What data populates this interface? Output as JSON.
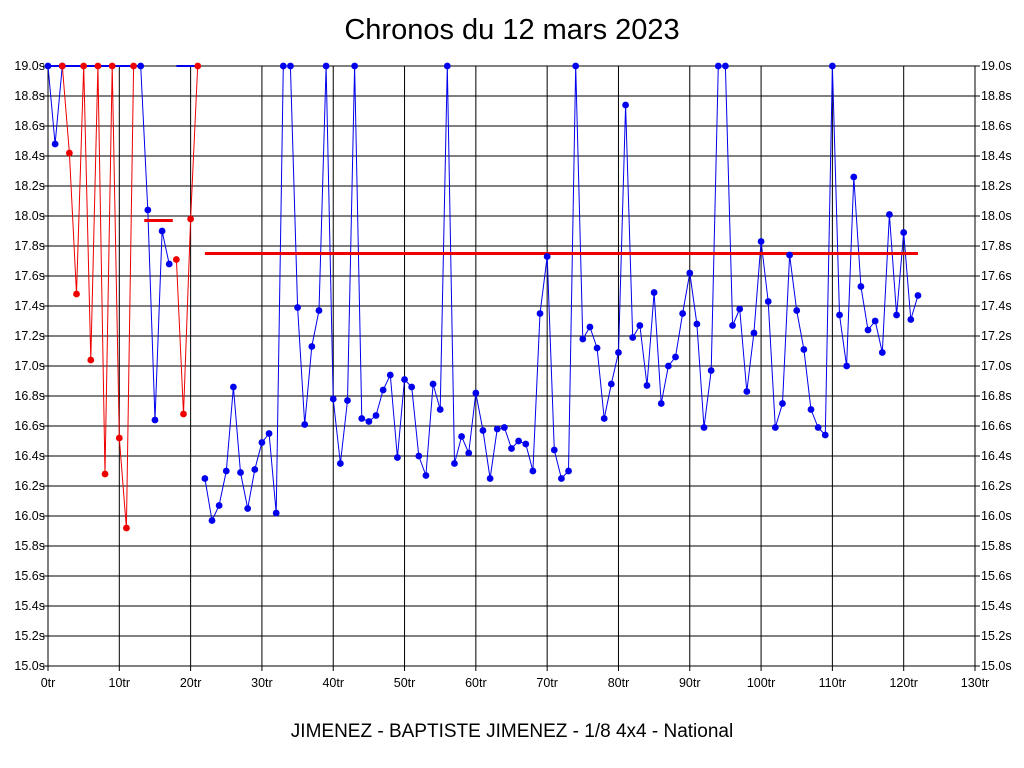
{
  "chart_data": {
    "type": "line",
    "title": "Chronos du 12 mars 2023",
    "footer": "JIMENEZ - BAPTISTE JIMENEZ - 1/8 4x4 - National",
    "xlabel": "",
    "ylabel": "",
    "xlim": [
      0,
      130
    ],
    "ylim": [
      15.0,
      19.0
    ],
    "grid": true,
    "x_ticks": [
      0,
      10,
      20,
      30,
      40,
      50,
      60,
      70,
      80,
      90,
      100,
      110,
      120,
      130
    ],
    "x_tick_labels": [
      "0tr",
      "10tr",
      "20tr",
      "30tr",
      "40tr",
      "50tr",
      "60tr",
      "70tr",
      "80tr",
      "90tr",
      "100tr",
      "110tr",
      "120tr",
      "130tr"
    ],
    "y_ticks": [
      15.0,
      15.2,
      15.4,
      15.6,
      15.8,
      16.0,
      16.2,
      16.4,
      16.6,
      16.8,
      17.0,
      17.2,
      17.4,
      17.6,
      17.8,
      18.0,
      18.2,
      18.4,
      18.6,
      18.8,
      19.0
    ],
    "y_tick_labels": [
      "15.0s",
      "15.2s",
      "15.4s",
      "15.6s",
      "15.8s",
      "16.0s",
      "16.2s",
      "16.4s",
      "16.6s",
      "16.8s",
      "17.0s",
      "17.2s",
      "17.4s",
      "17.6s",
      "17.8s",
      "18.0s",
      "18.2s",
      "18.4s",
      "18.6s",
      "18.8s",
      "19.0s"
    ],
    "colors": {
      "blue": "#0000ee",
      "red": "#ee0000",
      "grid": "#000000"
    },
    "series": [
      {
        "color": "#0000ee",
        "x": [
          0,
          1,
          2
        ],
        "y": [
          19.0,
          18.48,
          19.0
        ]
      },
      {
        "color": "#ee0000",
        "x": [
          2,
          3,
          4,
          5,
          6,
          7,
          8,
          9,
          10,
          11,
          12
        ],
        "y": [
          19.0,
          18.42,
          17.48,
          19.0,
          17.04,
          19.0,
          16.28,
          19.0,
          16.52,
          15.92,
          19.0
        ]
      },
      {
        "color": "#0000ee",
        "x": [
          13,
          14,
          15,
          16,
          17
        ],
        "y": [
          19.0,
          18.04,
          16.64,
          17.9,
          17.68
        ]
      },
      {
        "color": "#ee0000",
        "x": [
          18,
          19,
          20,
          21
        ],
        "y": [
          17.71,
          16.68,
          17.98,
          19.0
        ]
      },
      {
        "color": "#0000ee",
        "x": [
          22,
          23,
          24,
          25,
          26,
          27,
          28,
          29,
          30,
          31,
          32,
          33,
          34,
          35,
          36,
          37,
          38,
          39,
          40,
          41,
          42,
          43,
          44,
          45,
          46,
          47,
          48,
          49,
          50,
          51,
          52,
          53,
          54,
          55,
          56,
          57,
          58,
          59,
          60,
          61,
          62,
          63,
          64,
          65,
          66,
          67,
          68,
          69,
          70,
          71,
          72,
          73,
          74,
          75,
          76,
          77,
          78,
          79,
          80,
          81,
          82,
          83,
          84,
          85,
          86,
          87,
          88,
          89,
          90,
          91,
          92,
          93,
          94,
          95,
          96,
          97,
          98,
          99,
          100,
          101,
          102,
          103,
          104,
          105,
          106,
          107,
          108,
          109,
          110,
          111,
          112,
          113,
          114,
          115,
          116,
          117,
          118,
          119,
          120,
          121,
          122
        ],
        "y": [
          16.25,
          15.97,
          16.07,
          16.3,
          16.86,
          16.29,
          16.05,
          16.31,
          16.49,
          16.55,
          16.02,
          19.0,
          19.0,
          17.39,
          16.61,
          17.13,
          17.37,
          19.0,
          16.78,
          16.35,
          16.77,
          19.0,
          16.65,
          16.63,
          16.67,
          16.84,
          16.94,
          16.39,
          16.91,
          16.86,
          16.4,
          16.27,
          16.88,
          16.71,
          19.0,
          16.35,
          16.53,
          16.42,
          16.82,
          16.57,
          16.25,
          16.58,
          16.59,
          16.45,
          16.5,
          16.48,
          16.3,
          17.35,
          17.73,
          16.44,
          16.25,
          16.3,
          19.0,
          17.18,
          17.26,
          17.12,
          16.65,
          16.88,
          17.09,
          18.74,
          17.19,
          17.27,
          16.87,
          17.49,
          16.75,
          17.0,
          17.06,
          17.35,
          17.62,
          17.28,
          16.59,
          16.97,
          19.0,
          19.0,
          17.27,
          17.38,
          16.83,
          17.22,
          17.83,
          17.43,
          16.59,
          16.75,
          17.74,
          17.37,
          17.11,
          16.71,
          16.59,
          16.54,
          19.0,
          17.34,
          17.0,
          18.26,
          17.53,
          17.24,
          17.3,
          17.09,
          18.01,
          17.34,
          17.89,
          17.31,
          17.47
        ]
      }
    ],
    "flat_segments": [
      {
        "color": "#0000ee",
        "x": [
          0,
          13
        ],
        "y": 19.0
      },
      {
        "color": "#0000ee",
        "x": [
          18,
          21
        ],
        "y": 19.0
      }
    ],
    "reference_lines": [
      {
        "color": "#ee0000",
        "x": [
          13.5,
          17.5
        ],
        "y": 17.97
      },
      {
        "color": "#ee0000",
        "x": [
          22,
          122
        ],
        "y": 17.75
      }
    ]
  }
}
